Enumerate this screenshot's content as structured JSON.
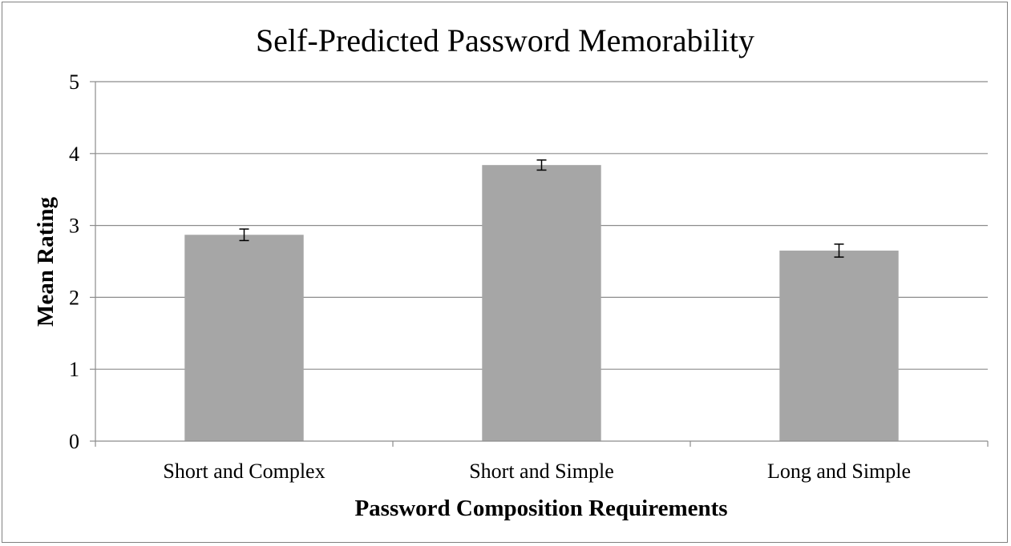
{
  "chart_data": {
    "type": "bar",
    "title": "Self-Predicted Password Memorability",
    "xlabel": "Password Composition Requirements",
    "ylabel": "Mean Rating",
    "categories": [
      "Short and Complex",
      "Short and Simple",
      "Long and Simple"
    ],
    "values": [
      2.87,
      3.84,
      2.65
    ],
    "error": [
      0.08,
      0.07,
      0.09
    ],
    "ylim": [
      0,
      5
    ],
    "yticks": [
      "0",
      "1",
      "2",
      "3",
      "4",
      "5"
    ],
    "grid": true,
    "bar_color": "#a6a6a6"
  }
}
